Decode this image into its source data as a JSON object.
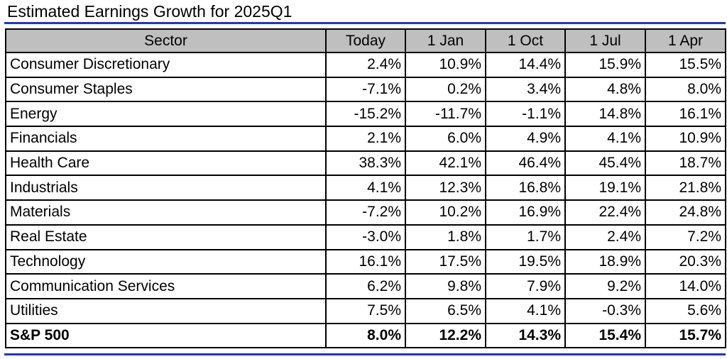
{
  "title": "Estimated Earnings Growth for 2025Q1",
  "colors": {
    "rule": "#1f35d1",
    "header_bg": "#bfbfbf",
    "border": "#000000"
  },
  "table": {
    "headers": [
      "Sector",
      "Today",
      "1 Jan",
      "1 Oct",
      "1 Jul",
      "1 Apr"
    ],
    "rows": [
      {
        "sector": "Consumer Discretionary",
        "values": [
          "2.4%",
          "10.9%",
          "14.4%",
          "15.9%",
          "15.5%"
        ]
      },
      {
        "sector": "Consumer Staples",
        "values": [
          "-7.1%",
          "0.2%",
          "3.4%",
          "4.8%",
          "8.0%"
        ]
      },
      {
        "sector": "Energy",
        "values": [
          "-15.2%",
          "-11.7%",
          "-1.1%",
          "14.8%",
          "16.1%"
        ]
      },
      {
        "sector": "Financials",
        "values": [
          "2.1%",
          "6.0%",
          "4.9%",
          "4.1%",
          "10.9%"
        ]
      },
      {
        "sector": "Health Care",
        "values": [
          "38.3%",
          "42.1%",
          "46.4%",
          "45.4%",
          "18.7%"
        ]
      },
      {
        "sector": "Industrials",
        "values": [
          "4.1%",
          "12.3%",
          "16.8%",
          "19.1%",
          "21.8%"
        ]
      },
      {
        "sector": "Materials",
        "values": [
          "-7.2%",
          "10.2%",
          "16.9%",
          "22.4%",
          "24.8%"
        ]
      },
      {
        "sector": "Real Estate",
        "values": [
          "-3.0%",
          "1.8%",
          "1.7%",
          "2.4%",
          "7.2%"
        ]
      },
      {
        "sector": "Technology",
        "values": [
          "16.1%",
          "17.5%",
          "19.5%",
          "18.9%",
          "20.3%"
        ]
      },
      {
        "sector": "Communication Services",
        "values": [
          "6.2%",
          "9.8%",
          "7.9%",
          "9.2%",
          "14.0%"
        ]
      },
      {
        "sector": "Utilities",
        "values": [
          "7.5%",
          "6.5%",
          "4.1%",
          "-0.3%",
          "5.6%"
        ]
      }
    ],
    "total": {
      "sector": "S&P 500",
      "values": [
        "8.0%",
        "12.2%",
        "14.3%",
        "15.4%",
        "15.7%"
      ]
    }
  }
}
